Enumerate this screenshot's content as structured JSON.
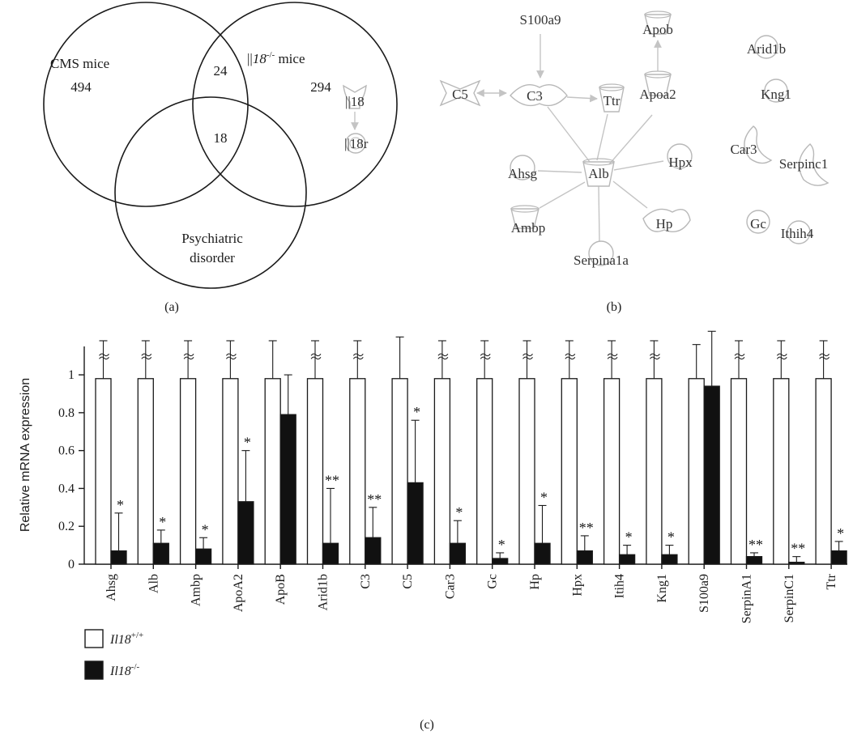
{
  "colors": {
    "stroke": "#1a1a1a",
    "node_stroke": "#b8b8b8",
    "edge": "#c4c4c4",
    "wt_fill": "#ffffff",
    "ko_fill": "#111111"
  },
  "panel_a": {
    "label": "(a)",
    "venn": {
      "sets": [
        {
          "name": "CMS mice",
          "count": "494"
        },
        {
          "name_prefix": "||",
          "name_gene": "18",
          "name_sup": "-/-",
          "name_suffix": " mice",
          "count": "294"
        },
        {
          "name_line1": "Psychiatric",
          "name_line2": "disorder"
        }
      ],
      "intersection_ab": "24",
      "intersection_abc": "18"
    },
    "pathway": {
      "source": "||18",
      "target": "||18r"
    }
  },
  "panel_b": {
    "label": "(b)",
    "nodes": [
      "S100a9",
      "C5",
      "C3",
      "Ttr",
      "Apob",
      "Apoa2",
      "Alb",
      "Ahsg",
      "Hpx",
      "Ambp",
      "Hp",
      "Serpina1a",
      "Arid1b",
      "Kng1",
      "Car3",
      "Serpinc1",
      "Gc",
      "Ithih4"
    ],
    "edges": [
      {
        "from": "S100a9",
        "to": "C3",
        "arrow": "end"
      },
      {
        "from": "C5",
        "to": "C3",
        "arrow": "both"
      },
      {
        "from": "C3",
        "to": "Ttr",
        "arrow": "end"
      },
      {
        "from": "Apoa2",
        "to": "Apob",
        "arrow": "end"
      },
      {
        "from": "Alb",
        "to": "C3",
        "arrow": "none"
      },
      {
        "from": "Alb",
        "to": "Ttr",
        "arrow": "none"
      },
      {
        "from": "Alb",
        "to": "Apoa2",
        "arrow": "none"
      },
      {
        "from": "Alb",
        "to": "Ahsg",
        "arrow": "none"
      },
      {
        "from": "Alb",
        "to": "Hpx",
        "arrow": "none"
      },
      {
        "from": "Alb",
        "to": "Ambp",
        "arrow": "none"
      },
      {
        "from": "Alb",
        "to": "Hp",
        "arrow": "none"
      },
      {
        "from": "Alb",
        "to": "Serpina1a",
        "arrow": "none"
      }
    ]
  },
  "panel_c": {
    "label": "(c)",
    "legend": [
      {
        "gene": "Il18",
        "sup": "+/+"
      },
      {
        "gene": "Il18",
        "sup": "-/-"
      }
    ]
  },
  "chart_data": {
    "type": "bar",
    "ylabel": "Relative mRNA expression",
    "ylim": [
      0,
      1.15
    ],
    "yticks": [
      "0",
      "0.2",
      "0.4",
      "0.6",
      "0.8",
      "1"
    ],
    "categories": [
      "Ahsg",
      "Alb",
      "Ambp",
      "ApoA2",
      "ApoB",
      "Arid1b",
      "C3",
      "C5",
      "Car3",
      "Gc",
      "Hp",
      "Hpx",
      "Itih4",
      "Kng1",
      "S100a9",
      "SerpinA1",
      "SerpinC1",
      "Ttr"
    ],
    "axis_break_wt": [
      true,
      true,
      true,
      true,
      false,
      true,
      true,
      false,
      true,
      true,
      true,
      true,
      true,
      true,
      false,
      true,
      true,
      true
    ],
    "series": [
      {
        "name": "Il18+/+",
        "values": [
          0.98,
          0.98,
          0.98,
          0.98,
          0.98,
          0.98,
          0.98,
          0.98,
          0.98,
          0.98,
          0.98,
          0.98,
          0.98,
          0.98,
          0.98,
          0.98,
          0.98,
          0.98
        ],
        "errors": [
          0.2,
          0.2,
          0.2,
          0.2,
          0.2,
          0.2,
          0.2,
          0.22,
          0.2,
          0.2,
          0.2,
          0.2,
          0.2,
          0.2,
          0.18,
          0.2,
          0.2,
          0.2
        ]
      },
      {
        "name": "Il18-/-",
        "values": [
          0.07,
          0.11,
          0.08,
          0.33,
          0.79,
          0.11,
          0.14,
          0.43,
          0.11,
          0.03,
          0.11,
          0.07,
          0.05,
          0.05,
          0.94,
          0.04,
          0.01,
          0.07
        ],
        "errors": [
          0.2,
          0.07,
          0.06,
          0.27,
          0.21,
          0.29,
          0.16,
          0.33,
          0.12,
          0.03,
          0.2,
          0.08,
          0.05,
          0.05,
          0.29,
          0.02,
          0.03,
          0.05
        ],
        "significance": [
          "*",
          "*",
          "*",
          "*",
          "",
          "**",
          "**",
          "*",
          "*",
          "*",
          "*",
          "**",
          "*",
          "*",
          "",
          "**",
          "**",
          "*"
        ]
      }
    ]
  }
}
